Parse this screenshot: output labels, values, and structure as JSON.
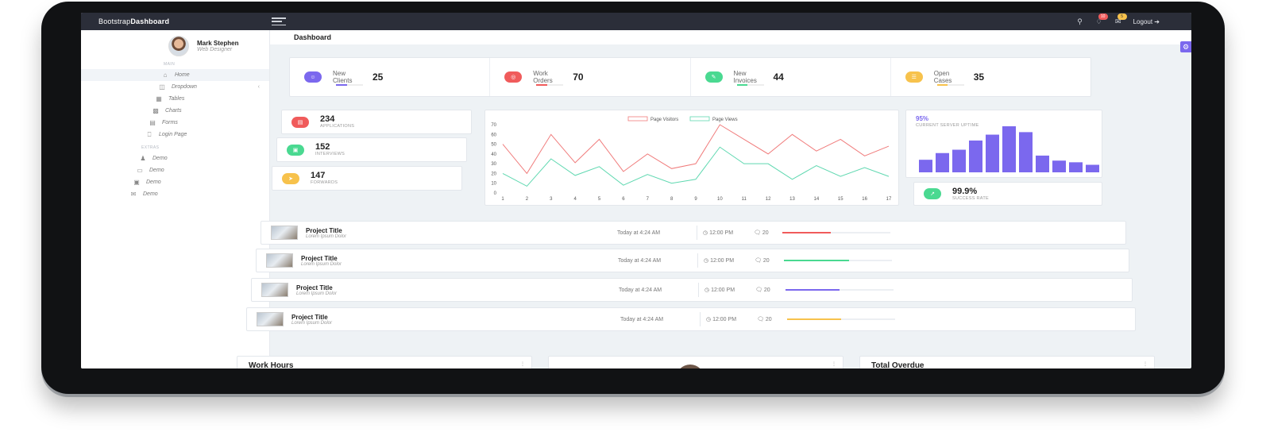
{
  "topbar": {
    "brand_light": "Bootstrap",
    "brand_bold": "Dashboard",
    "badge_notifications": "10",
    "badge_messages": "5",
    "logout_label": "Logout"
  },
  "profile": {
    "name": "Mark Stephen",
    "role": "Web Designer"
  },
  "sidebar": {
    "main_label": "MAIN",
    "extras_label": "EXTRAS",
    "items": [
      {
        "label": "Home",
        "icon": "home-icon"
      },
      {
        "label": "Dropdown",
        "icon": "briefcase-icon"
      },
      {
        "label": "Tables",
        "icon": "grid-icon"
      },
      {
        "label": "Charts",
        "icon": "bar-chart-icon"
      },
      {
        "label": "Forms",
        "icon": "form-icon"
      },
      {
        "label": "Login Page",
        "icon": "login-icon"
      }
    ],
    "extras": [
      {
        "label": "Demo",
        "icon": "user-icon"
      },
      {
        "label": "Demo",
        "icon": "monitor-icon"
      },
      {
        "label": "Demo",
        "icon": "window-icon"
      },
      {
        "label": "Demo",
        "icon": "mail-icon"
      }
    ]
  },
  "page_title": "Dashboard",
  "stats": [
    {
      "label": "New Clients",
      "value": "25",
      "color": "#7b68ee"
    },
    {
      "label": "Work Orders",
      "value": "70",
      "color": "#f05b5b"
    },
    {
      "label": "New Invoices",
      "value": "44",
      "color": "#4ad991"
    },
    {
      "label": "Open Cases",
      "value": "35",
      "color": "#f7c24c"
    }
  ],
  "metrics": [
    {
      "value": "234",
      "label": "APPLICATIONS",
      "color": "#f05b5b"
    },
    {
      "value": "152",
      "label": "INTERVIEWS",
      "color": "#4ad991"
    },
    {
      "value": "147",
      "label": "FORWARDS",
      "color": "#f7c24c"
    }
  ],
  "chart_data": {
    "type": "line",
    "x": [
      1,
      2,
      3,
      4,
      5,
      6,
      7,
      8,
      9,
      10,
      11,
      12,
      13,
      14,
      15,
      16,
      17
    ],
    "y_ticks": [
      0,
      10,
      20,
      30,
      40,
      50,
      60,
      70
    ],
    "ylim": [
      0,
      70
    ],
    "legend_position": "top-center",
    "series": [
      {
        "name": "Page Visitors",
        "color": "#f07b7b",
        "values": [
          50,
          20,
          60,
          31,
          55,
          22,
          40,
          25,
          30,
          70,
          55,
          40,
          60,
          43,
          55,
          38,
          48
        ]
      },
      {
        "name": "Page Views",
        "color": "#5fd8b0",
        "values": [
          20,
          7,
          35,
          18,
          27,
          8,
          19,
          10,
          14,
          47,
          30,
          30,
          14,
          28,
          17,
          26,
          17
        ]
      }
    ]
  },
  "uptime": {
    "value": "95%",
    "label": "CURRENT SERVER UPTIME",
    "bars": [
      15,
      23,
      27,
      38,
      45,
      55,
      48,
      20,
      14,
      12,
      9
    ],
    "bar_color": "#7b68ee"
  },
  "success": {
    "value": "99.9%",
    "label": "SUCCESS RATE",
    "color": "#4ad991"
  },
  "projects": [
    {
      "title": "Project Title",
      "subtitle": "Lorem Ipsum Dolor",
      "time": "Today at 4:24 AM",
      "clock": "12:00 PM",
      "comments": "20",
      "progress": 0.45,
      "color": "#f05b5b"
    },
    {
      "title": "Project Title",
      "subtitle": "Lorem Ipsum Dolor",
      "time": "Today at 4:24 AM",
      "clock": "12:00 PM",
      "comments": "20",
      "progress": 0.6,
      "color": "#4ad991"
    },
    {
      "title": "Project Title",
      "subtitle": "Lorem Ipsum Dolor",
      "time": "Today at 4:24 AM",
      "clock": "12:00 PM",
      "comments": "20",
      "progress": 0.5,
      "color": "#7b68ee"
    },
    {
      "title": "Project Title",
      "subtitle": "Lorem Ipsum Dolor",
      "time": "Today at 4:24 AM",
      "clock": "12:00 PM",
      "comments": "20",
      "progress": 0.5,
      "color": "#f7c24c"
    }
  ],
  "bottom_cards": {
    "work_hours": "Work Hours",
    "total_overdue": "Total Overdue"
  }
}
